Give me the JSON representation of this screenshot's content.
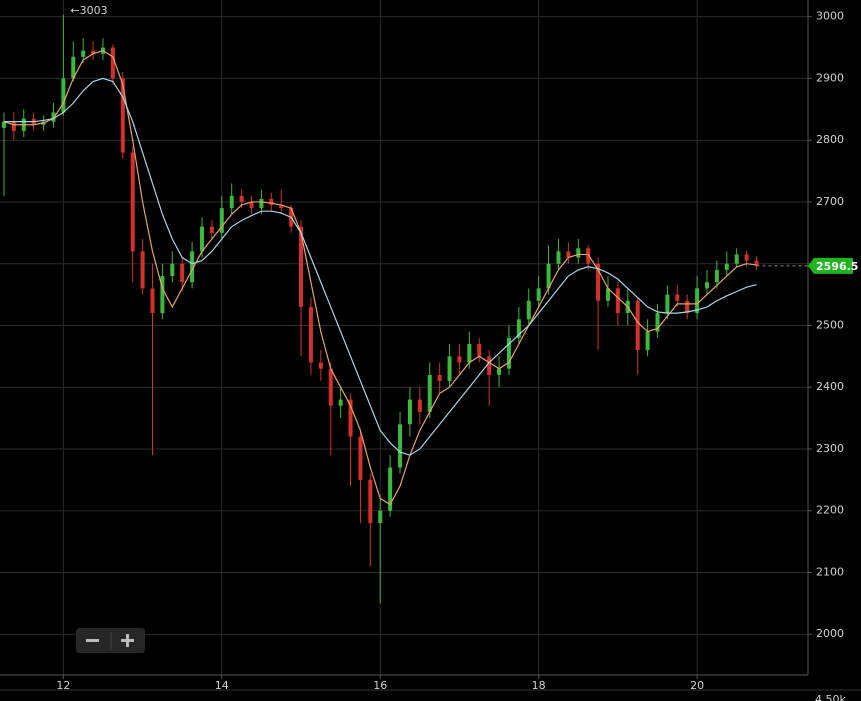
{
  "chart_data": {
    "type": "candlestick",
    "annotation": "←3003",
    "volume_axis_label": "4.50k",
    "up_color": "#3cb93c",
    "down_color": "#d3302a",
    "grid": true,
    "xlim": [
      11.2,
      21.4
    ],
    "ylim": [
      1934,
      3027
    ],
    "xticks": [
      12,
      14,
      16,
      18,
      20
    ],
    "yticks": [
      2000,
      2100,
      2200,
      2300,
      2400,
      2500,
      2600,
      2700,
      2800,
      2900,
      3000
    ],
    "x": [
      11.25,
      11.375,
      11.5,
      11.625,
      11.75,
      11.875,
      12,
      12.125,
      12.25,
      12.375,
      12.5,
      12.625,
      12.75,
      12.875,
      13,
      13.125,
      13.25,
      13.375,
      13.5,
      13.625,
      13.75,
      13.875,
      14,
      14.125,
      14.25,
      14.375,
      14.5,
      14.625,
      14.75,
      14.875,
      15,
      15.125,
      15.25,
      15.375,
      15.5,
      15.625,
      15.75,
      15.875,
      16,
      16.125,
      16.25,
      16.375,
      16.5,
      16.625,
      16.75,
      16.875,
      17,
      17.125,
      17.25,
      17.375,
      17.5,
      17.625,
      17.75,
      17.875,
      18,
      18.125,
      18.25,
      18.375,
      18.5,
      18.625,
      18.75,
      18.875,
      19,
      19.125,
      19.25,
      19.375,
      19.5,
      19.625,
      19.75,
      19.875,
      20,
      20.125,
      20.25,
      20.375,
      20.5,
      20.625,
      20.75
    ],
    "open": [
      2820,
      2830,
      2815,
      2835,
      2825,
      2830,
      2845,
      2900,
      2935,
      2945,
      2940,
      2950,
      2900,
      2780,
      2620,
      2560,
      2520,
      2580,
      2600,
      2570,
      2620,
      2660,
      2650,
      2690,
      2710,
      2700,
      2690,
      2705,
      2695,
      2690,
      2660,
      2530,
      2440,
      2430,
      2370,
      2380,
      2320,
      2250,
      2180,
      2200,
      2270,
      2340,
      2380,
      2360,
      2420,
      2410,
      2450,
      2440,
      2470,
      2450,
      2420,
      2430,
      2480,
      2510,
      2540,
      2560,
      2600,
      2620,
      2610,
      2625,
      2600,
      2540,
      2560,
      2520,
      2540,
      2460,
      2490,
      2520,
      2550,
      2540,
      2520,
      2560,
      2570,
      2590,
      2600,
      2615,
      2605
    ],
    "high": [
      2845,
      2845,
      2850,
      2845,
      2840,
      2860,
      3003,
      2960,
      2965,
      2960,
      2965,
      2955,
      2910,
      2790,
      2640,
      2600,
      2600,
      2620,
      2610,
      2635,
      2675,
      2670,
      2710,
      2730,
      2720,
      2710,
      2720,
      2715,
      2720,
      2695,
      2670,
      2545,
      2460,
      2440,
      2400,
      2390,
      2330,
      2260,
      2220,
      2290,
      2360,
      2400,
      2400,
      2440,
      2440,
      2470,
      2470,
      2490,
      2480,
      2460,
      2450,
      2500,
      2530,
      2560,
      2580,
      2630,
      2640,
      2635,
      2640,
      2630,
      2610,
      2580,
      2570,
      2560,
      2545,
      2510,
      2535,
      2565,
      2565,
      2550,
      2580,
      2590,
      2605,
      2620,
      2625,
      2620,
      2612
    ],
    "low": [
      2710,
      2800,
      2805,
      2815,
      2815,
      2820,
      2840,
      2895,
      2925,
      2930,
      2930,
      2890,
      2770,
      2570,
      2550,
      2290,
      2510,
      2570,
      2555,
      2560,
      2610,
      2640,
      2640,
      2680,
      2690,
      2680,
      2680,
      2685,
      2680,
      2650,
      2450,
      2420,
      2410,
      2290,
      2350,
      2240,
      2180,
      2110,
      2050,
      2190,
      2260,
      2320,
      2340,
      2350,
      2390,
      2400,
      2420,
      2430,
      2440,
      2370,
      2400,
      2420,
      2470,
      2500,
      2530,
      2550,
      2590,
      2600,
      2600,
      2590,
      2460,
      2530,
      2500,
      2500,
      2420,
      2450,
      2480,
      2510,
      2530,
      2510,
      2510,
      2550,
      2560,
      2580,
      2595,
      2595,
      2590
    ],
    "close": [
      2830,
      2815,
      2835,
      2825,
      2830,
      2845,
      2900,
      2935,
      2945,
      2940,
      2950,
      2900,
      2780,
      2620,
      2560,
      2520,
      2580,
      2600,
      2570,
      2620,
      2660,
      2650,
      2690,
      2710,
      2700,
      2690,
      2705,
      2695,
      2690,
      2660,
      2530,
      2440,
      2430,
      2370,
      2380,
      2320,
      2250,
      2180,
      2200,
      2270,
      2340,
      2380,
      2360,
      2420,
      2410,
      2450,
      2440,
      2470,
      2450,
      2420,
      2430,
      2480,
      2510,
      2540,
      2560,
      2600,
      2620,
      2610,
      2625,
      2600,
      2540,
      2560,
      2520,
      2540,
      2460,
      2490,
      2520,
      2550,
      2540,
      2520,
      2560,
      2570,
      2590,
      2600,
      2615,
      2605,
      2596.5
    ],
    "series": [
      {
        "color": "#e8a46a",
        "values": [
          2830,
          2825,
          2825,
          2825,
          2828,
          2835,
          2860,
          2900,
          2930,
          2940,
          2945,
          2935,
          2890,
          2800,
          2700,
          2620,
          2560,
          2530,
          2560,
          2590,
          2620,
          2640,
          2660,
          2680,
          2695,
          2700,
          2700,
          2698,
          2695,
          2690,
          2650,
          2570,
          2490,
          2430,
          2400,
          2370,
          2330,
          2270,
          2220,
          2210,
          2240,
          2290,
          2330,
          2360,
          2390,
          2400,
          2420,
          2440,
          2450,
          2440,
          2430,
          2440,
          2470,
          2500,
          2530,
          2560,
          2590,
          2610,
          2615,
          2615,
          2590,
          2560,
          2545,
          2530,
          2505,
          2490,
          2495,
          2515,
          2535,
          2535,
          2535,
          2550,
          2565,
          2580,
          2595,
          2600,
          2598
        ]
      },
      {
        "color": "#a9d4e6",
        "values": [
          2830,
          2830,
          2830,
          2830,
          2832,
          2835,
          2845,
          2860,
          2880,
          2895,
          2900,
          2895,
          2870,
          2830,
          2780,
          2730,
          2680,
          2640,
          2610,
          2600,
          2605,
          2620,
          2640,
          2660,
          2670,
          2678,
          2685,
          2685,
          2682,
          2675,
          2650,
          2610,
          2570,
          2530,
          2490,
          2450,
          2410,
          2370,
          2330,
          2310,
          2295,
          2290,
          2300,
          2320,
          2340,
          2360,
          2380,
          2400,
          2420,
          2440,
          2455,
          2470,
          2485,
          2500,
          2520,
          2540,
          2560,
          2580,
          2590,
          2595,
          2592,
          2585,
          2575,
          2560,
          2545,
          2530,
          2522,
          2520,
          2520,
          2522,
          2525,
          2530,
          2540,
          2548,
          2555,
          2562,
          2566
        ]
      }
    ]
  }
}
